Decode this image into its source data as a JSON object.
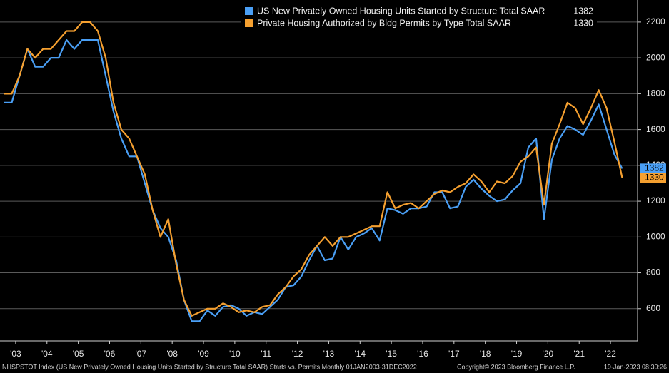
{
  "chart_data": {
    "type": "line",
    "x": [
      2003.125,
      2003.375,
      2003.625,
      2003.875,
      2004.125,
      2004.375,
      2004.625,
      2004.875,
      2005.125,
      2005.375,
      2005.625,
      2005.875,
      2006.125,
      2006.375,
      2006.625,
      2006.875,
      2007.125,
      2007.375,
      2007.625,
      2007.875,
      2008.125,
      2008.375,
      2008.625,
      2008.875,
      2009.125,
      2009.375,
      2009.625,
      2009.875,
      2010.125,
      2010.375,
      2010.625,
      2010.875,
      2011.125,
      2011.375,
      2011.625,
      2011.875,
      2012.125,
      2012.375,
      2012.625,
      2012.875,
      2013.125,
      2013.375,
      2013.625,
      2013.875,
      2014.125,
      2014.375,
      2014.625,
      2014.875,
      2015.125,
      2015.375,
      2015.625,
      2015.875,
      2016.125,
      2016.375,
      2016.625,
      2016.875,
      2017.125,
      2017.375,
      2017.625,
      2017.875,
      2018.125,
      2018.375,
      2018.625,
      2018.875,
      2019.125,
      2019.375,
      2019.625,
      2019.875,
      2020.125,
      2020.375,
      2020.625,
      2020.875,
      2021.125,
      2021.375,
      2021.625,
      2021.875,
      2022.125,
      2022.375,
      2022.625,
      2022.875
    ],
    "series": [
      {
        "name": "US New Privately Owned Housing Units Started by Structure Total SAAR",
        "color": "#4a9ff5",
        "values": [
          1750,
          1750,
          1900,
          2050,
          1950,
          1950,
          2000,
          2000,
          2100,
          2050,
          2100,
          2100,
          2100,
          1900,
          1700,
          1550,
          1450,
          1450,
          1300,
          1150,
          1050,
          1000,
          870,
          650,
          530,
          530,
          590,
          560,
          610,
          620,
          600,
          560,
          580,
          570,
          610,
          650,
          720,
          730,
          780,
          870,
          950,
          870,
          880,
          1000,
          930,
          1000,
          1020,
          1050,
          980,
          1160,
          1150,
          1130,
          1160,
          1160,
          1170,
          1250,
          1250,
          1160,
          1170,
          1280,
          1320,
          1270,
          1230,
          1200,
          1210,
          1260,
          1300,
          1500,
          1550,
          1100,
          1430,
          1550,
          1620,
          1600,
          1570,
          1650,
          1740,
          1600,
          1460,
          1382
        ]
      },
      {
        "name": "Private Housing Authorized by Bldg Permits by Type Total SAAR",
        "color": "#f5a030",
        "values": [
          1800,
          1800,
          1900,
          2050,
          2000,
          2050,
          2050,
          2100,
          2150,
          2150,
          2200,
          2200,
          2150,
          2000,
          1750,
          1600,
          1550,
          1450,
          1350,
          1150,
          1000,
          1100,
          850,
          650,
          560,
          580,
          600,
          600,
          630,
          610,
          580,
          590,
          580,
          610,
          620,
          680,
          720,
          780,
          820,
          900,
          950,
          1000,
          950,
          1000,
          1000,
          1020,
          1040,
          1060,
          1060,
          1250,
          1160,
          1180,
          1190,
          1160,
          1200,
          1240,
          1260,
          1250,
          1280,
          1300,
          1350,
          1310,
          1250,
          1310,
          1300,
          1340,
          1420,
          1450,
          1500,
          1180,
          1520,
          1630,
          1750,
          1720,
          1630,
          1720,
          1820,
          1720,
          1530,
          1330
        ]
      }
    ],
    "xlim": [
      2003,
      2023
    ],
    "xticks": [
      {
        "value": 2003.5,
        "label": "'03"
      },
      {
        "value": 2004.5,
        "label": "'04"
      },
      {
        "value": 2005.5,
        "label": "'05"
      },
      {
        "value": 2006.5,
        "label": "'06"
      },
      {
        "value": 2007.5,
        "label": "'07"
      },
      {
        "value": 2008.5,
        "label": "'08"
      },
      {
        "value": 2009.5,
        "label": "'09"
      },
      {
        "value": 2010.5,
        "label": "'10"
      },
      {
        "value": 2011.5,
        "label": "'11"
      },
      {
        "value": 2012.5,
        "label": "'12"
      },
      {
        "value": 2013.5,
        "label": "'13"
      },
      {
        "value": 2014.5,
        "label": "'14"
      },
      {
        "value": 2015.5,
        "label": "'15"
      },
      {
        "value": 2016.5,
        "label": "'16"
      },
      {
        "value": 2017.5,
        "label": "'17"
      },
      {
        "value": 2018.5,
        "label": "'18"
      },
      {
        "value": 2019.5,
        "label": "'19"
      },
      {
        "value": 2020.5,
        "label": "'20"
      },
      {
        "value": 2021.5,
        "label": "'21"
      },
      {
        "value": 2022.5,
        "label": "'22"
      }
    ],
    "ylim": [
      420,
      2323
    ],
    "yticks": [
      600,
      800,
      1000,
      1200,
      1400,
      1600,
      1800,
      2000,
      2200
    ],
    "grid": true,
    "footer": {
      "source": "NHSPSTOT Index (US New Privately Owned Housing Units Started by Structure Total SAAR) Starts vs. Permits  Monthly 01JAN2003-31DEC2022",
      "copyright": "Copyright© 2023 Bloomberg Finance L.P.",
      "timestamp": "19-Jan-2023 08:30:26"
    }
  }
}
